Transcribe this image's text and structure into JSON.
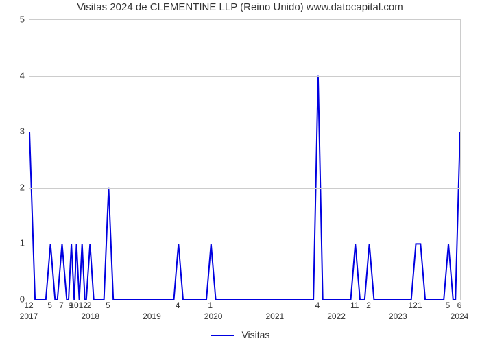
{
  "chart": {
    "type": "line",
    "title": "Visitas 2024 de CLEMENTINE LLP (Reino Unido) www.datocapital.com",
    "title_fontsize": 15,
    "title_color": "#333333",
    "background_color": "#ffffff",
    "plot_border_color": "#333333",
    "grid_color": "#cccccc",
    "axis_label_fontsize": 13,
    "line_color": "#0000e0",
    "line_width": 2,
    "ylim": [
      0,
      5
    ],
    "ytick_step": 1,
    "yticks": [
      0,
      1,
      2,
      3,
      4,
      5
    ],
    "x_year_labels": [
      "2017",
      "2018",
      "2019",
      "2020",
      "2021",
      "2022",
      "2023",
      "2024"
    ],
    "x_year_count": 8,
    "point_labels": [
      {
        "x": 0.0,
        "label": "12"
      },
      {
        "x": 4.5,
        "label": "5"
      },
      {
        "x": 7.0,
        "label": "7"
      },
      {
        "x": 9.0,
        "label": "9"
      },
      {
        "x": 10.7,
        "label": "1012"
      },
      {
        "x": 13.0,
        "label": "2"
      },
      {
        "x": 17.0,
        "label": "5"
      },
      {
        "x": 32.0,
        "label": "4"
      },
      {
        "x": 39.0,
        "label": "1"
      },
      {
        "x": 62.0,
        "label": "4"
      },
      {
        "x": 70.0,
        "label": "11"
      },
      {
        "x": 73.0,
        "label": "2"
      },
      {
        "x": 82.5,
        "label": "12"
      },
      {
        "x": 84.0,
        "label": "1"
      },
      {
        "x": 90.0,
        "label": "5"
      },
      {
        "x": 92.5,
        "label": "6"
      }
    ],
    "series": [
      {
        "x": 0.0,
        "y": 3.0
      },
      {
        "x": 1.2,
        "y": 0.0
      },
      {
        "x": 3.5,
        "y": 0.0
      },
      {
        "x": 4.5,
        "y": 1.0
      },
      {
        "x": 5.5,
        "y": 0.0
      },
      {
        "x": 6.0,
        "y": 0.0
      },
      {
        "x": 7.0,
        "y": 1.0
      },
      {
        "x": 8.0,
        "y": 0.0
      },
      {
        "x": 8.4,
        "y": 0.0
      },
      {
        "x": 9.0,
        "y": 1.0
      },
      {
        "x": 9.6,
        "y": 0.0
      },
      {
        "x": 10.1,
        "y": 1.0
      },
      {
        "x": 10.7,
        "y": 0.0
      },
      {
        "x": 11.3,
        "y": 1.0
      },
      {
        "x": 11.9,
        "y": 0.0
      },
      {
        "x": 12.2,
        "y": 0.0
      },
      {
        "x": 13.0,
        "y": 1.0
      },
      {
        "x": 13.8,
        "y": 0.0
      },
      {
        "x": 16.0,
        "y": 0.0
      },
      {
        "x": 17.0,
        "y": 2.0
      },
      {
        "x": 18.0,
        "y": 0.0
      },
      {
        "x": 31.0,
        "y": 0.0
      },
      {
        "x": 32.0,
        "y": 1.0
      },
      {
        "x": 33.0,
        "y": 0.0
      },
      {
        "x": 38.0,
        "y": 0.0
      },
      {
        "x": 39.0,
        "y": 1.0
      },
      {
        "x": 40.0,
        "y": 0.0
      },
      {
        "x": 61.0,
        "y": 0.0
      },
      {
        "x": 62.0,
        "y": 4.0
      },
      {
        "x": 63.0,
        "y": 0.0
      },
      {
        "x": 69.0,
        "y": 0.0
      },
      {
        "x": 70.0,
        "y": 1.0
      },
      {
        "x": 71.0,
        "y": 0.0
      },
      {
        "x": 72.0,
        "y": 0.0
      },
      {
        "x": 73.0,
        "y": 1.0
      },
      {
        "x": 74.0,
        "y": 0.0
      },
      {
        "x": 82.0,
        "y": 0.0
      },
      {
        "x": 83.0,
        "y": 1.0
      },
      {
        "x": 84.0,
        "y": 1.0
      },
      {
        "x": 85.0,
        "y": 0.0
      },
      {
        "x": 89.0,
        "y": 0.0
      },
      {
        "x": 90.0,
        "y": 1.0
      },
      {
        "x": 91.0,
        "y": 0.0
      },
      {
        "x": 91.5,
        "y": 0.0
      },
      {
        "x": 92.5,
        "y": 3.0
      }
    ],
    "x_domain": [
      0,
      92.5
    ],
    "legend_label": "Visitas",
    "legend_fontsize": 14
  }
}
